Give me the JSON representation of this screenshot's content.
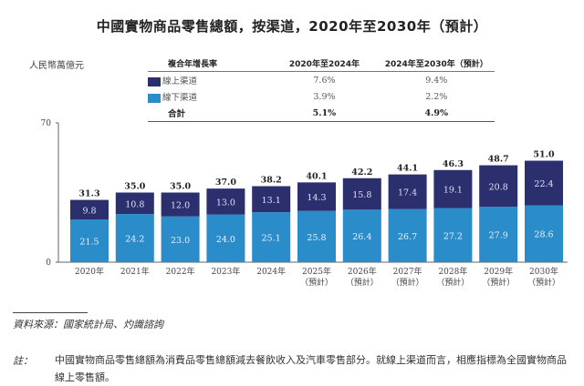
{
  "title": "中國實物商品零售總額，按渠道，2020年至2030年（預計）",
  "unit_label": "人民幣萬億元",
  "cagr_table": {
    "headers": [
      "複合年增長率",
      "2020年至2024年",
      "2024年至2030年（預計）"
    ],
    "rows": [
      {
        "label": "線上渠道",
        "v1": "7.6%",
        "v2": "9.4%",
        "color": "#2b2f6e"
      },
      {
        "label": "線下渠道",
        "v1": "3.9%",
        "v2": "2.2%",
        "color": "#2a8cc8"
      },
      {
        "label": "合計",
        "v1": "5.1%",
        "v2": "4.9%"
      }
    ]
  },
  "chart_data": {
    "type": "bar",
    "stacked": true,
    "title": "中國實物商品零售總額，按渠道，2020年至2030年（預計）",
    "ylabel": "人民幣萬億元",
    "ylim": [
      0,
      70
    ],
    "yticks": [
      "0",
      "70"
    ],
    "categories": [
      {
        "year": "2020年",
        "sub": ""
      },
      {
        "year": "2021年",
        "sub": ""
      },
      {
        "year": "2022年",
        "sub": ""
      },
      {
        "year": "2023年",
        "sub": ""
      },
      {
        "year": "2024年",
        "sub": ""
      },
      {
        "year": "2025年",
        "sub": "（預計）"
      },
      {
        "year": "2026年",
        "sub": "（預計）"
      },
      {
        "year": "2027年",
        "sub": "（預計）"
      },
      {
        "year": "2028年",
        "sub": "（預計）"
      },
      {
        "year": "2029年",
        "sub": "（預計）"
      },
      {
        "year": "2030年",
        "sub": "（預計）"
      }
    ],
    "series": [
      {
        "name": "線下渠道",
        "color": "#2a8cc8",
        "values": [
          21.5,
          24.2,
          23.0,
          24.0,
          25.1,
          25.8,
          26.4,
          26.7,
          27.2,
          27.9,
          28.6
        ],
        "labels": [
          "21.5",
          "24.2",
          "23.0",
          "24.0",
          "25.1",
          "25.8",
          "26.4",
          "26.7",
          "27.2",
          "27.9",
          "28.6"
        ]
      },
      {
        "name": "線上渠道",
        "color": "#2b2f6e",
        "values": [
          9.8,
          10.8,
          12.0,
          13.0,
          13.1,
          14.3,
          15.8,
          17.4,
          19.1,
          20.8,
          22.4
        ],
        "labels": [
          "9.8",
          "10.8",
          "12.0",
          "13.0",
          "13.1",
          "14.3",
          "15.8",
          "17.4",
          "19.1",
          "20.8",
          "22.4"
        ]
      }
    ],
    "totals": [
      "31.3",
      "35.0",
      "35.0",
      "37.0",
      "38.2",
      "40.1",
      "42.2",
      "44.1",
      "46.3",
      "48.7",
      "51.0"
    ]
  },
  "source": "資料來源：國家統計局、灼識諮詢",
  "note_label": "註：",
  "note": "中國實物商品零售總額為消費品零售總額減去餐飲收入及汽車零售部分。就線上渠道而言，相應指標為全國實物商品線上零售額。"
}
